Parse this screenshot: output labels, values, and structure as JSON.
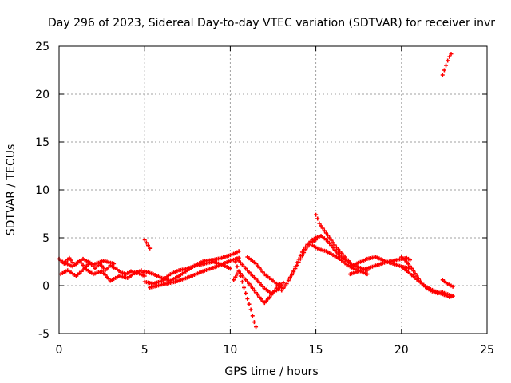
{
  "chart_data": {
    "type": "scatter",
    "title": "Day 296 of 2023, Sidereal Day-to-day VTEC variation (SDTVAR) for receiver invr",
    "xlabel": "GPS time / hours",
    "ylabel": "SDTVAR / TECUs",
    "xlim": [
      0,
      25
    ],
    "ylim": [
      -5,
      25
    ],
    "xticks": [
      0,
      5,
      10,
      15,
      20,
      25
    ],
    "yticks": [
      -5,
      0,
      5,
      10,
      15,
      20,
      25
    ],
    "grid": true,
    "marker": "+",
    "series": [
      {
        "name": "SDTVAR",
        "color": "#ff0000",
        "tracks": [
          {
            "x": [
              0.0,
              0.3,
              0.6,
              0.9,
              1.2,
              1.5,
              1.8,
              2.1,
              2.4,
              2.7,
              3.0,
              3.3,
              3.6,
              3.9,
              4.2,
              4.5,
              4.8,
              5.0
            ],
            "y": [
              2.8,
              2.3,
              2.9,
              2.2,
              2.6,
              1.9,
              2.4,
              1.8,
              2.3,
              1.6,
              2.1,
              1.8,
              1.4,
              1.2,
              1.5,
              1.3,
              1.6,
              1.2
            ]
          },
          {
            "x": [
              0.1,
              0.5,
              1.0,
              1.5,
              2.0,
              2.5,
              3.0,
              3.5,
              4.0,
              4.5,
              5.0
            ],
            "y": [
              1.2,
              1.6,
              1.0,
              1.8,
              1.2,
              1.5,
              0.5,
              1.0,
              0.8,
              1.4,
              1.0
            ]
          },
          {
            "x": [
              0.2,
              0.8,
              1.4,
              2.0,
              2.6,
              3.2
            ],
            "y": [
              2.5,
              2.0,
              2.8,
              2.2,
              2.6,
              2.3
            ]
          },
          {
            "x": [
              5.0,
              5.1,
              5.2,
              5.3
            ],
            "y": [
              4.8,
              4.5,
              4.2,
              3.9
            ]
          },
          {
            "x": [
              5.0,
              5.5,
              6.0,
              6.5,
              7.0,
              7.5,
              8.0,
              8.5,
              9.0,
              9.5,
              10.0,
              10.3,
              10.5
            ],
            "y": [
              1.5,
              1.2,
              0.8,
              0.5,
              1.0,
              1.6,
              2.2,
              2.6,
              2.7,
              2.9,
              3.2,
              3.4,
              3.6
            ]
          },
          {
            "x": [
              5.0,
              5.5,
              6.0,
              6.5,
              7.0,
              7.5,
              8.0,
              8.5,
              9.0,
              9.5,
              10.0
            ],
            "y": [
              0.4,
              0.2,
              0.5,
              1.2,
              1.6,
              1.8,
              2.1,
              2.3,
              2.5,
              2.2,
              1.8
            ]
          },
          {
            "x": [
              5.3,
              6.0,
              6.8,
              7.6,
              8.4,
              9.2,
              10.0,
              10.5
            ],
            "y": [
              -0.2,
              0.1,
              0.4,
              0.9,
              1.5,
              2.0,
              2.6,
              2.9
            ]
          },
          {
            "x": [
              10.3,
              10.6,
              10.9,
              11.2,
              11.4,
              11.5
            ],
            "y": [
              2.5,
              1.0,
              -0.8,
              -2.5,
              -3.8,
              -4.3
            ]
          },
          {
            "x": [
              10.2,
              10.5,
              10.8,
              11.1,
              11.4,
              11.7,
              12.0,
              12.3,
              12.6,
              12.9
            ],
            "y": [
              0.6,
              1.5,
              0.8,
              0.2,
              -0.5,
              -1.2,
              -1.8,
              -1.2,
              -0.5,
              0.2
            ]
          },
          {
            "x": [
              10.4,
              10.8,
              11.2,
              11.6,
              12.0,
              12.4,
              12.8,
              13.1
            ],
            "y": [
              2.8,
              2.0,
              1.2,
              0.5,
              -0.3,
              -0.8,
              -0.4,
              0.3
            ]
          },
          {
            "x": [
              11.0,
              11.5,
              12.0,
              12.5,
              13.0
            ],
            "y": [
              3.0,
              2.3,
              1.2,
              0.5,
              -0.2
            ]
          },
          {
            "x": [
              13.0,
              13.3,
              13.6,
              13.9,
              14.2,
              14.5,
              14.8,
              15.0
            ],
            "y": [
              -0.5,
              0.2,
              1.2,
              2.4,
              3.5,
              4.3,
              4.8,
              5.0
            ]
          },
          {
            "x": [
              13.5,
              13.8,
              14.1,
              14.4,
              14.7,
              15.0
            ],
            "y": [
              0.8,
              1.8,
              2.8,
              3.8,
              4.5,
              4.8
            ]
          },
          {
            "x": [
              15.0,
              15.1,
              15.2,
              15.4,
              15.6,
              15.8,
              16.0,
              16.2,
              16.4,
              16.6,
              16.8,
              17.0
            ],
            "y": [
              7.4,
              7.0,
              6.5,
              6.0,
              5.5,
              5.0,
              4.5,
              4.0,
              3.6,
              3.2,
              2.8,
              2.4
            ]
          },
          {
            "x": [
              15.0,
              15.3,
              15.6,
              15.9,
              16.2,
              16.5,
              16.8,
              17.1,
              17.4,
              17.7,
              18.0
            ],
            "y": [
              5.0,
              5.2,
              4.8,
              4.2,
              3.5,
              3.0,
              2.6,
              2.2,
              2.0,
              1.8,
              1.6
            ]
          },
          {
            "x": [
              14.8,
              15.2,
              15.6,
              16.0,
              16.4,
              16.8,
              17.2,
              17.6,
              18.0
            ],
            "y": [
              4.2,
              3.8,
              3.6,
              3.2,
              2.8,
              2.2,
              1.8,
              1.5,
              1.2
            ]
          },
          {
            "x": [
              17.0,
              17.5,
              18.0,
              18.5,
              19.0,
              19.5,
              20.0,
              20.3,
              20.5
            ],
            "y": [
              1.2,
              1.5,
              1.8,
              2.1,
              2.4,
              2.6,
              2.8,
              2.9,
              2.7
            ]
          },
          {
            "x": [
              17.0,
              17.5,
              18.0,
              18.5,
              19.0,
              19.5,
              20.0,
              20.5
            ],
            "y": [
              2.0,
              2.4,
              2.8,
              3.0,
              2.6,
              2.3,
              2.0,
              1.8
            ]
          },
          {
            "x": [
              20.0,
              20.3,
              20.6,
              20.9,
              21.2,
              21.5,
              21.8,
              22.1,
              22.4,
              22.7,
              23.0
            ],
            "y": [
              3.0,
              2.5,
              1.8,
              1.0,
              0.2,
              -0.3,
              -0.6,
              -0.8,
              -0.7,
              -0.9,
              -1.1
            ]
          },
          {
            "x": [
              20.0,
              20.4,
              20.8,
              21.2,
              21.6,
              22.0,
              22.4,
              22.8,
              23.0
            ],
            "y": [
              2.0,
              1.4,
              0.8,
              0.2,
              -0.3,
              -0.6,
              -0.9,
              -1.2,
              -1.1
            ]
          },
          {
            "x": [
              22.4,
              22.6,
              22.8,
              23.0
            ],
            "y": [
              0.6,
              0.3,
              0.1,
              -0.1
            ]
          },
          {
            "x": [
              22.4,
              22.5,
              22.6,
              22.7,
              22.8,
              22.9
            ],
            "y": [
              22.0,
              22.5,
              23.0,
              23.5,
              23.9,
              24.2
            ]
          }
        ]
      }
    ]
  }
}
